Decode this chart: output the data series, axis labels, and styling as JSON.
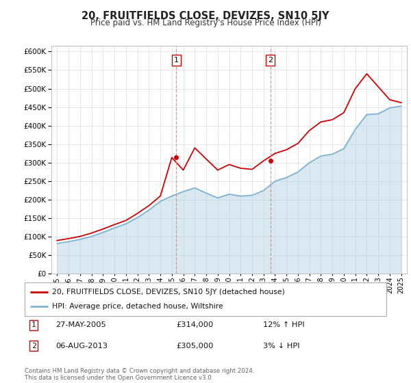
{
  "title": "20, FRUITFIELDS CLOSE, DEVIZES, SN10 5JY",
  "subtitle": "Price paid vs. HM Land Registry's House Price Index (HPI)",
  "ytick_values": [
    0,
    50000,
    100000,
    150000,
    200000,
    250000,
    300000,
    350000,
    400000,
    450000,
    500000,
    550000,
    600000
  ],
  "years": [
    1995,
    1996,
    1997,
    1998,
    1999,
    2000,
    2001,
    2002,
    2003,
    2004,
    2005,
    2006,
    2007,
    2008,
    2009,
    2010,
    2011,
    2012,
    2013,
    2014,
    2015,
    2016,
    2017,
    2018,
    2019,
    2020,
    2021,
    2022,
    2023,
    2024,
    2025
  ],
  "hpi_values": [
    82000,
    87000,
    93000,
    101000,
    112000,
    124000,
    135000,
    152000,
    172000,
    196000,
    210000,
    222000,
    232000,
    218000,
    205000,
    215000,
    210000,
    212000,
    225000,
    250000,
    260000,
    275000,
    300000,
    318000,
    323000,
    338000,
    390000,
    430000,
    432000,
    448000,
    453000
  ],
  "house_values": [
    90000,
    95000,
    101000,
    110000,
    121000,
    133000,
    144000,
    163000,
    184000,
    210000,
    314000,
    280000,
    340000,
    310000,
    280000,
    295000,
    285000,
    282000,
    305000,
    325000,
    335000,
    352000,
    387000,
    410000,
    416000,
    435000,
    500000,
    540000,
    505000,
    470000,
    462000
  ],
  "house_color": "#cc0000",
  "hpi_color": "#7fb3d3",
  "hpi_fill_color": "#aecde0",
  "sale1_year": 2005.4,
  "sale1_price": 314000,
  "sale2_year": 2013.6,
  "sale2_price": 305000,
  "vline_color": "#ee8888",
  "background_color": "#ffffff",
  "grid_color": "#e0e0e0",
  "legend_label1": "20, FRUITFIELDS CLOSE, DEVIZES, SN10 5JY (detached house)",
  "legend_label2": "HPI: Average price, detached house, Wiltshire",
  "annotation1_date": "27-MAY-2005",
  "annotation1_price": "£314,000",
  "annotation1_hpi": "12% ↑ HPI",
  "annotation2_date": "06-AUG-2013",
  "annotation2_price": "£305,000",
  "annotation2_hpi": "3% ↓ HPI",
  "footer": "Contains HM Land Registry data © Crown copyright and database right 2024.\nThis data is licensed under the Open Government Licence v3.0."
}
